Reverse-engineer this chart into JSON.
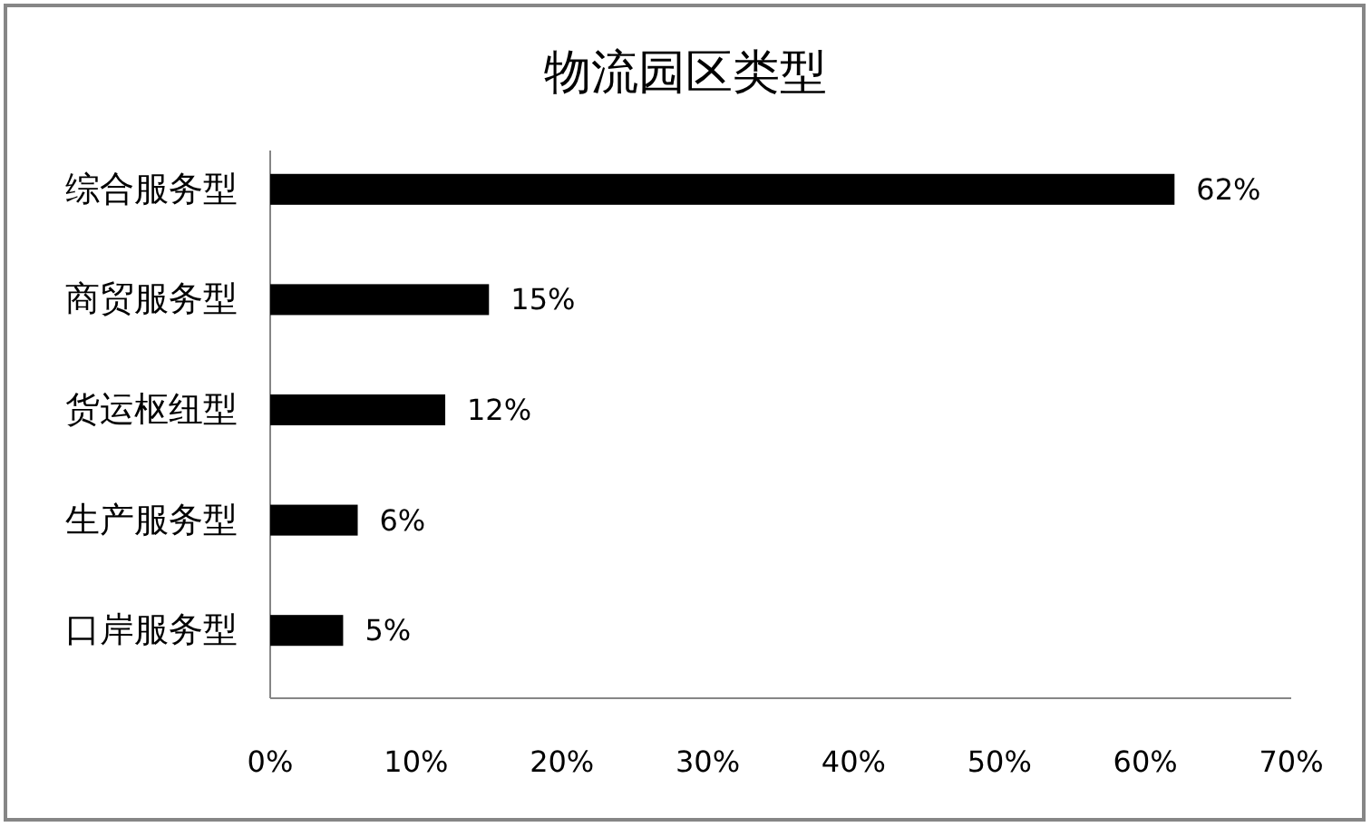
{
  "chart_data": {
    "type": "bar",
    "orientation": "horizontal",
    "title": "物流园区类型",
    "categories": [
      "综合服务型",
      "商贸服务型",
      "货运枢纽型",
      "生产服务型",
      "口岸服务型"
    ],
    "values": [
      62,
      15,
      12,
      6,
      5
    ],
    "value_labels": [
      "62%",
      "15%",
      "12%",
      "6%",
      "5%"
    ],
    "color": "#000000",
    "xlim": [
      0,
      70
    ],
    "xticks": [
      {
        "value": 0,
        "label": "0%"
      },
      {
        "value": 10,
        "label": "10%"
      },
      {
        "value": 20,
        "label": "20%"
      },
      {
        "value": 30,
        "label": "30%"
      },
      {
        "value": 40,
        "label": "40%"
      },
      {
        "value": 50,
        "label": "50%"
      },
      {
        "value": 60,
        "label": "60%"
      },
      {
        "value": 70,
        "label": "70%"
      }
    ]
  }
}
